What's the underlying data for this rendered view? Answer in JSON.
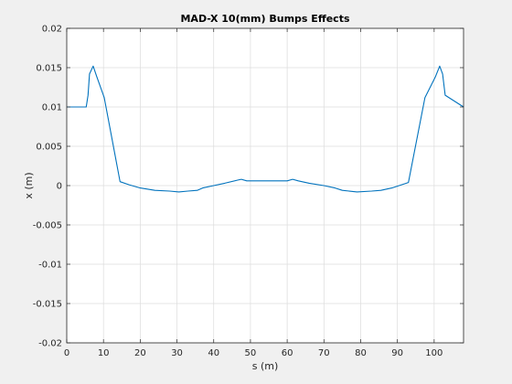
{
  "chart_data": {
    "type": "line",
    "title": "MAD-X 10(mm) Bumps Effects",
    "xlabel": "s (m)",
    "ylabel": "x (m)",
    "xlim": [
      0,
      108
    ],
    "ylim": [
      -0.02,
      0.02
    ],
    "grid": true,
    "x_ticks": [
      0,
      10,
      20,
      30,
      40,
      50,
      60,
      70,
      80,
      90,
      100
    ],
    "x_tick_labels": [
      "0",
      "10",
      "20",
      "30",
      "40",
      "50",
      "60",
      "70",
      "80",
      "90",
      "100"
    ],
    "y_ticks": [
      -0.02,
      -0.015,
      -0.01,
      -0.005,
      0,
      0.005,
      0.01,
      0.015,
      0.02
    ],
    "y_tick_labels": [
      "-0.02",
      "-0.015",
      "-0.01",
      "-0.005",
      "0",
      "0.005",
      "0.01",
      "0.015",
      "0.02"
    ],
    "colors": {
      "line": "#0072bd",
      "plot_bg": "#ffffff",
      "figure_bg": "#f0f0f0",
      "grid": "#dcdcdc",
      "axis": "#262626"
    },
    "series": [
      {
        "x": [
          0,
          5.3,
          5.8,
          6.2,
          7.2,
          8.2,
          10.2,
          14.5,
          17,
          20,
          24,
          28,
          30.5,
          33,
          35.5,
          37,
          40,
          43,
          46.5,
          47.5,
          49,
          52,
          56,
          60,
          61.5,
          63,
          66,
          70,
          73,
          75,
          79,
          83,
          85.5,
          88.5,
          93,
          97.5,
          100.3,
          101.5,
          102.3,
          103,
          108
        ],
        "y": [
          0.01,
          0.01,
          0.0115,
          0.0142,
          0.0152,
          0.0138,
          0.0112,
          0.0005,
          0.0001,
          -0.0003,
          -0.0006,
          -0.0007,
          -0.0008,
          -0.0007,
          -0.0006,
          -0.0003,
          0.0,
          0.0003,
          0.0007,
          0.0008,
          0.0006,
          0.0006,
          0.0006,
          0.0006,
          0.0008,
          0.0006,
          0.0003,
          0.0,
          -0.0003,
          -0.0006,
          -0.0008,
          -0.0007,
          -0.0006,
          -0.0003,
          0.0004,
          0.0112,
          0.0138,
          0.0152,
          0.0142,
          0.0115,
          0.01
        ]
      }
    ]
  }
}
